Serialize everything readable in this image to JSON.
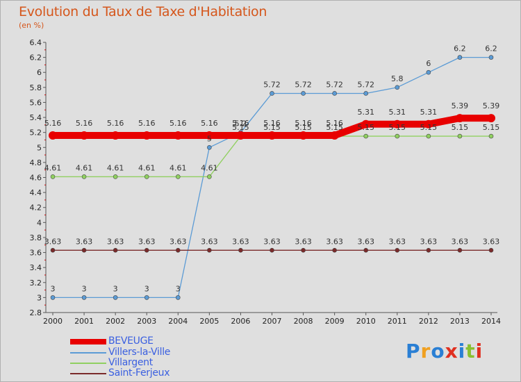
{
  "header": {
    "title": "Evolution du Taux de Taxe d'Habitation",
    "unit": "(en %)"
  },
  "logo": {
    "text": "Proxiti",
    "colors": [
      "#2a7fd4",
      "#f0a020",
      "#2a7fd4",
      "#e03020",
      "#2a7fd4",
      "#8ac030",
      "#e03020"
    ]
  },
  "chart_data": {
    "type": "line",
    "title": "Evolution du Taux de Taxe d'Habitation",
    "ylabel": "(en %)",
    "xlabel": "",
    "ylim": [
      2.8,
      6.4
    ],
    "yticks": [
      "2.8",
      "3",
      "3.2",
      "3.4",
      "3.6",
      "3.8",
      "4",
      "4.2",
      "4.4",
      "4.6",
      "4.8",
      "5",
      "5.2",
      "5.4",
      "5.6",
      "5.8",
      "6",
      "6.2",
      "6.4"
    ],
    "categories": [
      "2000",
      "2001",
      "2002",
      "2003",
      "2004",
      "2005",
      "2006",
      "2007",
      "2008",
      "2009",
      "2010",
      "2011",
      "2012",
      "2013",
      "2014"
    ],
    "series": [
      {
        "name": "BEVEUGE",
        "color": "#e80000",
        "values": [
          5.16,
          5.16,
          5.16,
          5.16,
          5.16,
          5.16,
          5.16,
          5.16,
          5.16,
          5.16,
          5.31,
          5.31,
          5.31,
          5.39,
          5.39
        ],
        "labels": [
          "5.16",
          "5.16",
          "5.16",
          "5.16",
          "5.16",
          "5.16",
          "5.16",
          "5.16",
          "5.16",
          "5.16",
          "5.31",
          "5.31",
          "5.31",
          "5.39",
          "5.39"
        ]
      },
      {
        "name": "Villers-la-Ville",
        "color": "#5b9bd5",
        "values": [
          3,
          3,
          3,
          3,
          3,
          5,
          5.2,
          5.72,
          5.72,
          5.72,
          5.72,
          5.8,
          6,
          6.2,
          6.2
        ],
        "labels": [
          "3",
          "3",
          "3",
          "3",
          "3",
          "5",
          "5.2",
          "5.72",
          "5.72",
          "5.72",
          "5.72",
          "5.8",
          "6",
          "6.2",
          "6.2"
        ]
      },
      {
        "name": "Villargent",
        "color": "#90d060",
        "values": [
          4.61,
          4.61,
          4.61,
          4.61,
          4.61,
          4.61,
          5.15,
          5.15,
          5.15,
          5.15,
          5.15,
          5.15,
          5.15,
          5.15,
          5.15
        ],
        "labels": [
          "4.61",
          "4.61",
          "4.61",
          "4.61",
          "4.61",
          "4.61",
          "5.15",
          "5.15",
          "5.15",
          "5.15",
          "5.15",
          "5.15",
          "5.15",
          "5.15",
          "5.15"
        ]
      },
      {
        "name": "Saint-Ferjeux",
        "color": "#7a2a2a",
        "values": [
          3.63,
          3.63,
          3.63,
          3.63,
          3.63,
          3.63,
          3.63,
          3.63,
          3.63,
          3.63,
          3.63,
          3.63,
          3.63,
          3.63,
          3.63
        ],
        "labels": [
          "3.63",
          "3.63",
          "3.63",
          "3.63",
          "3.63",
          "3.63",
          "3.63",
          "3.63",
          "3.63",
          "3.63",
          "3.63",
          "3.63",
          "3.63",
          "3.63",
          "3.63"
        ]
      }
    ],
    "grid": false,
    "legend": "bottom-left"
  }
}
